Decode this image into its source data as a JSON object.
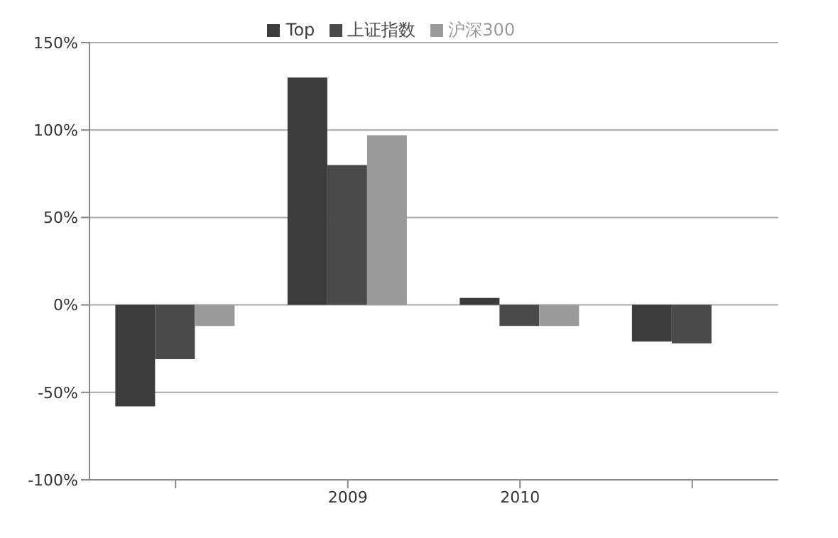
{
  "chart_data": {
    "type": "bar",
    "categories": [
      null,
      "2009",
      "2010",
      null
    ],
    "series": [
      {
        "name": "Top",
        "color": "#3c3c3c",
        "values": [
          -58,
          130,
          4,
          -21
        ]
      },
      {
        "name": "上证指数",
        "color": "#4a4a4a",
        "values": [
          -31,
          80,
          -12,
          -22
        ]
      },
      {
        "name": "沪深300",
        "color": "#9a9a9a",
        "values": [
          -12,
          97,
          -12,
          null
        ]
      }
    ],
    "ylim": [
      -100,
      150
    ],
    "yticks": [
      {
        "value": -100,
        "label": "-100%"
      },
      {
        "value": -50,
        "label": "-50%"
      },
      {
        "value": 0,
        "label": "0%"
      },
      {
        "value": 50,
        "label": "50%"
      },
      {
        "value": 100,
        "label": "100%"
      },
      {
        "value": 150,
        "label": "150%"
      }
    ],
    "grid": "y",
    "legend": "top"
  }
}
